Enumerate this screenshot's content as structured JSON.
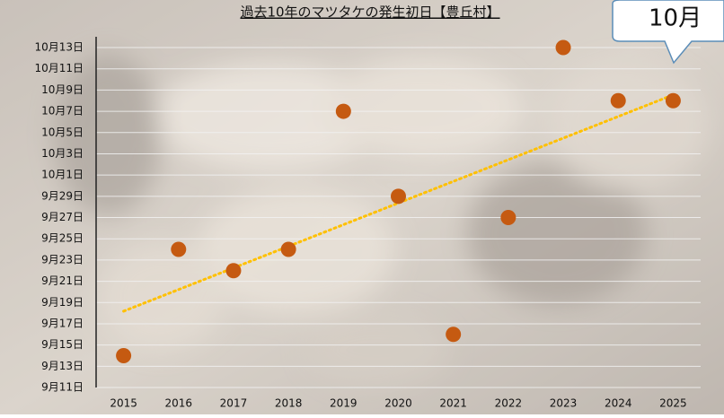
{
  "chart_data": {
    "type": "scatter",
    "title": "過去10年のマツタケの発生初日【豊丘村】",
    "callout": "10月",
    "categories": [
      "2015",
      "2016",
      "2017",
      "2018",
      "2019",
      "2020",
      "2021",
      "2022",
      "2023",
      "2024",
      "2025"
    ],
    "values": [
      14,
      24,
      22,
      24,
      37,
      29,
      16,
      27,
      43,
      38,
      38
    ],
    "color": "#c55a11",
    "trendline": "linear",
    "trendline_color": "#ffc000",
    "ylim": [
      11,
      43
    ],
    "yticks": [
      {
        "value": 11,
        "label": "9月11日"
      },
      {
        "value": 13,
        "label": "9月13日"
      },
      {
        "value": 15,
        "label": "9月15日"
      },
      {
        "value": 17,
        "label": "9月17日"
      },
      {
        "value": 19,
        "label": "9月19日"
      },
      {
        "value": 21,
        "label": "9月21日"
      },
      {
        "value": 23,
        "label": "9月23日"
      },
      {
        "value": 25,
        "label": "9月25日"
      },
      {
        "value": 27,
        "label": "9月27日"
      },
      {
        "value": 29,
        "label": "9月29日"
      },
      {
        "value": 31,
        "label": "10月1日"
      },
      {
        "value": 33,
        "label": "10月3日"
      },
      {
        "value": 35,
        "label": "10月5日"
      },
      {
        "value": 37,
        "label": "10月7日"
      },
      {
        "value": 39,
        "label": "10月9日"
      },
      {
        "value": 41,
        "label": "10月11日"
      },
      {
        "value": 43,
        "label": "10月13日"
      }
    ],
    "grid": true
  }
}
